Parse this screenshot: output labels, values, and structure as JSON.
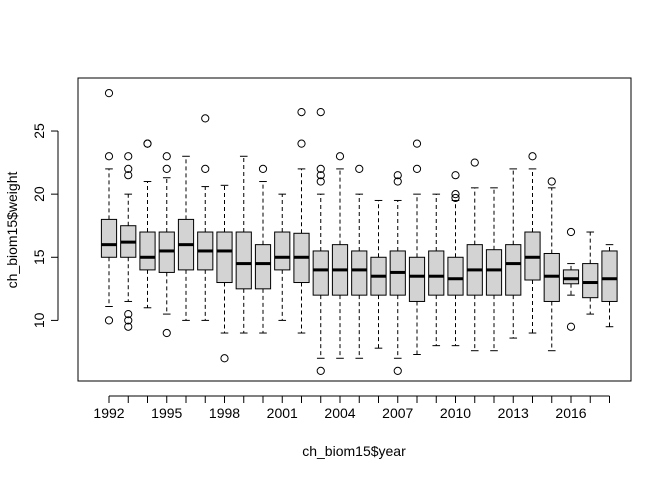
{
  "chart_data": {
    "type": "boxplot",
    "title": "",
    "xlabel": "ch_biom15$year",
    "ylabel": "ch_biom15$weight",
    "ylim": [
      5.2,
      29.2
    ],
    "y_ticks": [
      10,
      15,
      20,
      25
    ],
    "x_tick_labels": [
      "1992",
      "1995",
      "1998",
      "2001",
      "2004",
      "2007",
      "2010",
      "2013",
      "2016"
    ],
    "box_fill": "#d3d3d3",
    "grid": false,
    "categories": [
      "1992",
      "1993",
      "1994",
      "1995",
      "1996",
      "1997",
      "1998",
      "1999",
      "2000",
      "2001",
      "2002",
      "2003",
      "2004",
      "2005",
      "2006",
      "2007",
      "2008",
      "2009",
      "2010",
      "2011",
      "2012",
      "2013",
      "2014",
      "2015",
      "2016",
      "2017",
      "2018"
    ],
    "boxes": [
      {
        "year": "1992",
        "low": 11.1,
        "q1": 15.0,
        "median": 16.0,
        "q3": 18.0,
        "high": 22.0,
        "outliers": [
          28.0,
          23.0,
          10.0
        ]
      },
      {
        "year": "1993",
        "low": 11.5,
        "q1": 15.0,
        "median": 16.2,
        "q3": 17.5,
        "high": 20.0,
        "outliers": [
          23.0,
          22.0,
          21.5,
          10.5,
          10.0,
          9.5
        ]
      },
      {
        "year": "1994",
        "low": 11.0,
        "q1": 14.0,
        "median": 15.0,
        "q3": 17.0,
        "high": 21.0,
        "outliers": [
          24.0,
          24.0
        ]
      },
      {
        "year": "1995",
        "low": 10.5,
        "q1": 13.8,
        "median": 15.5,
        "q3": 17.0,
        "high": 21.3,
        "outliers": [
          23.0,
          22.0,
          9.0
        ]
      },
      {
        "year": "1996",
        "low": 10.0,
        "q1": 14.0,
        "median": 16.0,
        "q3": 18.0,
        "high": 23.0,
        "outliers": []
      },
      {
        "year": "1997",
        "low": 10.0,
        "q1": 14.0,
        "median": 15.5,
        "q3": 17.0,
        "high": 20.6,
        "outliers": [
          26.0,
          22.0
        ]
      },
      {
        "year": "1998",
        "low": 9.0,
        "q1": 13.0,
        "median": 15.5,
        "q3": 17.0,
        "high": 20.7,
        "outliers": [
          7.0
        ]
      },
      {
        "year": "1999",
        "low": 9.0,
        "q1": 12.5,
        "median": 14.5,
        "q3": 17.0,
        "high": 23.0,
        "outliers": []
      },
      {
        "year": "2000",
        "low": 9.0,
        "q1": 12.5,
        "median": 14.5,
        "q3": 16.0,
        "high": 21.0,
        "outliers": [
          22.0
        ]
      },
      {
        "year": "2001",
        "low": 10.0,
        "q1": 14.0,
        "median": 15.0,
        "q3": 17.0,
        "high": 20.0,
        "outliers": []
      },
      {
        "year": "2002",
        "low": 9.0,
        "q1": 13.0,
        "median": 15.0,
        "q3": 16.9,
        "high": 22.0,
        "outliers": [
          26.5,
          24.0
        ]
      },
      {
        "year": "2003",
        "low": 7.0,
        "q1": 12.0,
        "median": 14.0,
        "q3": 15.5,
        "high": 20.0,
        "outliers": [
          26.5,
          22.0,
          21.5,
          21.0,
          6.0
        ]
      },
      {
        "year": "2004",
        "low": 7.0,
        "q1": 12.0,
        "median": 14.0,
        "q3": 16.0,
        "high": 22.0,
        "outliers": [
          23.0
        ]
      },
      {
        "year": "2005",
        "low": 7.0,
        "q1": 12.0,
        "median": 14.0,
        "q3": 15.5,
        "high": 20.0,
        "outliers": [
          22.0
        ]
      },
      {
        "year": "2006",
        "low": 7.8,
        "q1": 12.0,
        "median": 13.5,
        "q3": 15.0,
        "high": 19.5,
        "outliers": []
      },
      {
        "year": "2007",
        "low": 7.0,
        "q1": 12.0,
        "median": 13.8,
        "q3": 15.5,
        "high": 19.5,
        "outliers": [
          21.5,
          21.0,
          6.0
        ]
      },
      {
        "year": "2008",
        "low": 7.3,
        "q1": 11.5,
        "median": 13.5,
        "q3": 15.0,
        "high": 20.0,
        "outliers": [
          24.0,
          22.0
        ]
      },
      {
        "year": "2009",
        "low": 8.0,
        "q1": 12.0,
        "median": 13.5,
        "q3": 15.5,
        "high": 20.0,
        "outliers": []
      },
      {
        "year": "2010",
        "low": 8.0,
        "q1": 12.0,
        "median": 13.3,
        "q3": 15.0,
        "high": 19.5,
        "outliers": [
          21.5,
          20.0,
          19.7
        ]
      },
      {
        "year": "2011",
        "low": 7.6,
        "q1": 12.0,
        "median": 14.0,
        "q3": 16.0,
        "high": 20.5,
        "outliers": [
          22.5
        ]
      },
      {
        "year": "2012",
        "low": 7.6,
        "q1": 12.0,
        "median": 14.0,
        "q3": 15.6,
        "high": 20.5,
        "outliers": []
      },
      {
        "year": "2013",
        "low": 8.6,
        "q1": 12.0,
        "median": 14.5,
        "q3": 16.0,
        "high": 22.0,
        "outliers": []
      },
      {
        "year": "2014",
        "low": 9.0,
        "q1": 13.2,
        "median": 15.0,
        "q3": 17.0,
        "high": 22.0,
        "outliers": [
          23.0
        ]
      },
      {
        "year": "2015",
        "low": 7.6,
        "q1": 11.5,
        "median": 13.5,
        "q3": 15.3,
        "high": 20.5,
        "outliers": [
          21.0
        ]
      },
      {
        "year": "2016",
        "low": 12.0,
        "q1": 12.9,
        "median": 13.3,
        "q3": 14.0,
        "high": 14.5,
        "outliers": [
          17.0,
          9.5
        ]
      },
      {
        "year": "2017",
        "low": 10.5,
        "q1": 11.8,
        "median": 13.0,
        "q3": 14.5,
        "high": 17.0,
        "outliers": []
      },
      {
        "year": "2018",
        "low": 9.5,
        "q1": 11.5,
        "median": 13.3,
        "q3": 15.5,
        "high": 16.0,
        "outliers": []
      }
    ]
  }
}
